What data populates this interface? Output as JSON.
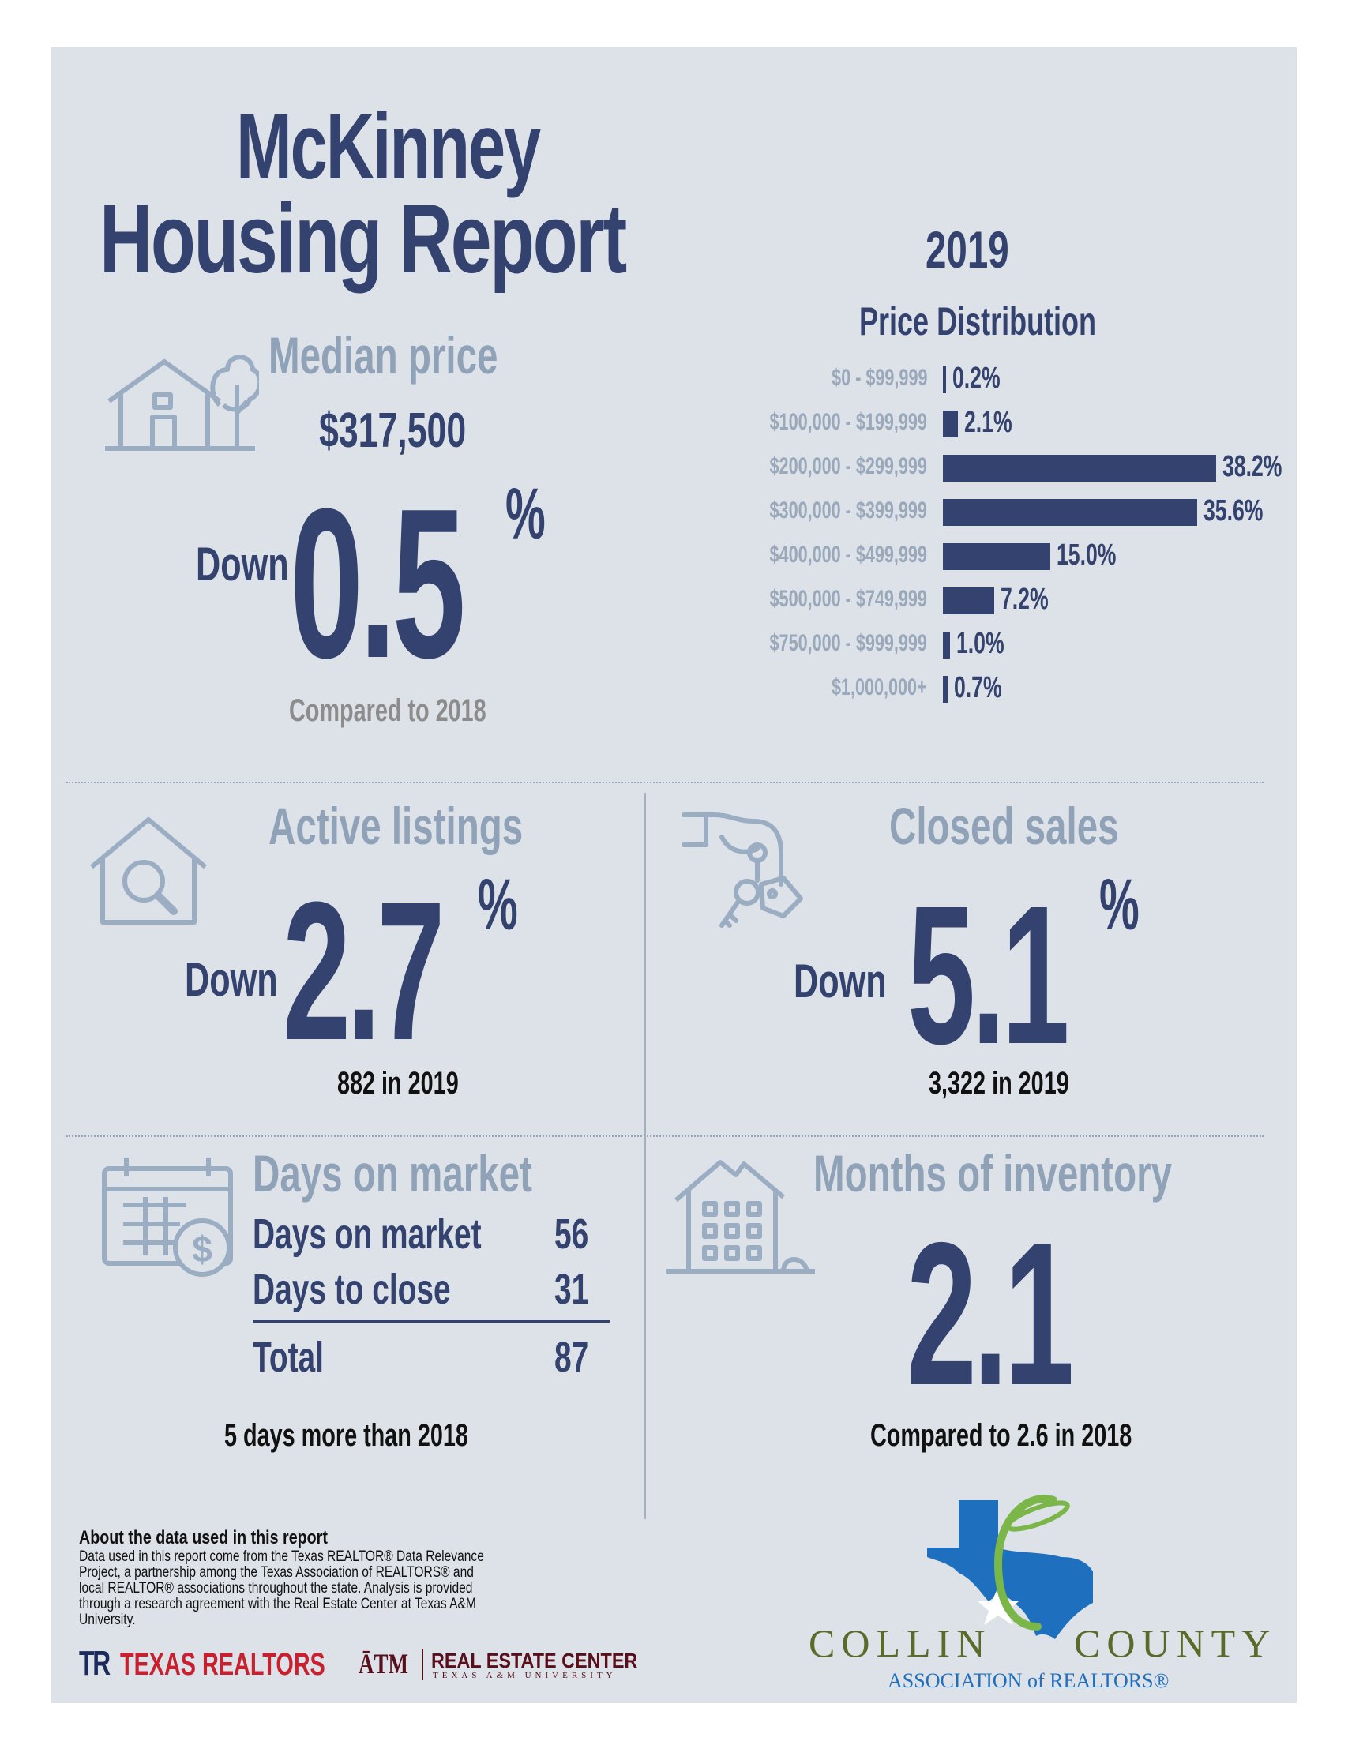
{
  "title": {
    "line1": "McKinney",
    "line2": "Housing Report"
  },
  "year": "2019",
  "median_price": {
    "heading": "Median price",
    "price": "$317,500",
    "direction": "Down",
    "change": "0.5",
    "pct_sign": "%",
    "comparison": "Compared to 2018"
  },
  "chart_data": {
    "type": "bar",
    "title": "Price Distribution",
    "orientation": "horizontal",
    "categories": [
      "$0 - $99,999",
      "$100,000 - $199,999",
      "$200,000 - $299,999",
      "$300,000 - $399,999",
      "$400,000 - $499,999",
      "$500,000 - $749,999",
      "$750,000 - $999,999",
      "$1,000,000+"
    ],
    "values": [
      0.2,
      2.1,
      38.2,
      35.6,
      15.0,
      7.2,
      1.0,
      0.7
    ],
    "value_labels": [
      "0.2%",
      "2.1%",
      "38.2%",
      "35.6%",
      "15.0%",
      "7.2%",
      "1.0%",
      "0.7%"
    ],
    "unit": "%",
    "color": "#33426e"
  },
  "active_listings": {
    "heading": "Active listings",
    "direction": "Down",
    "change": "2.7",
    "pct_sign": "%",
    "note": "882 in 2019"
  },
  "closed_sales": {
    "heading": "Closed sales",
    "direction": "Down",
    "change": "5.1",
    "pct_sign": "%",
    "note": "3,322 in 2019"
  },
  "days_on_market": {
    "heading": "Days on market",
    "rows": [
      {
        "label": "Days on market",
        "value": "56"
      },
      {
        "label": "Days to close",
        "value": "31"
      }
    ],
    "total_label": "Total",
    "total_value": "87",
    "note": "5 days more than 2018"
  },
  "months_inventory": {
    "heading": "Months of inventory",
    "value": "2.1",
    "note": "Compared to 2.6 in 2018"
  },
  "about": {
    "title": "About the data used in this report",
    "text": "Data used in this report come from the Texas REALTOR® Data Relevance Project, a partnership among the Texas Association of REALTORS® and local REALTOR® associations throughout the state. Analysis is provided through a research agreement with the Real Estate Center at Texas A&M University."
  },
  "logos": {
    "texas_realtors": "TEXAS REALTORS",
    "tr_mark": "TR",
    "atm_mark": "ĀTM",
    "rec_name": "REAL ESTATE CENTER",
    "rec_sub": "TEXAS A&M UNIVERSITY",
    "collin_left": "COLLIN",
    "collin_right": "COUNTY",
    "association": "ASSOCIATION of REALTORS®"
  },
  "colors": {
    "navy": "#33426e",
    "steel": "#8fa2b8",
    "panel": "#dde2e8",
    "texas_blue": "#1f6fbf",
    "green": "#7ab648",
    "collin_olive": "#5a6a2a"
  }
}
